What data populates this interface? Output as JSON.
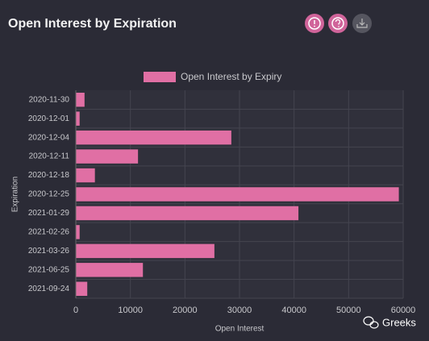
{
  "chart_data": {
    "type": "hbar",
    "title": "Open Interest by Expiration",
    "categories": [
      "2020-11-30",
      "2020-12-01",
      "2020-12-04",
      "2020-12-11",
      "2020-12-18",
      "2020-12-25",
      "2021-01-29",
      "2021-02-26",
      "2021-03-26",
      "2021-06-25",
      "2021-09-24"
    ],
    "series": [
      {
        "name": "Open Interest by Expiry",
        "color": "#e06fa4",
        "values": [
          1600,
          700,
          28500,
          11400,
          3500,
          59200,
          40800,
          700,
          25400,
          12300,
          2100
        ]
      }
    ],
    "xlabel": "Open Interest",
    "ylabel": "Expiration",
    "xlim": [
      0,
      60000
    ],
    "xticks": [
      0,
      10000,
      20000,
      30000,
      40000,
      50000,
      60000
    ],
    "grid": true
  },
  "watermark": "Greeks"
}
